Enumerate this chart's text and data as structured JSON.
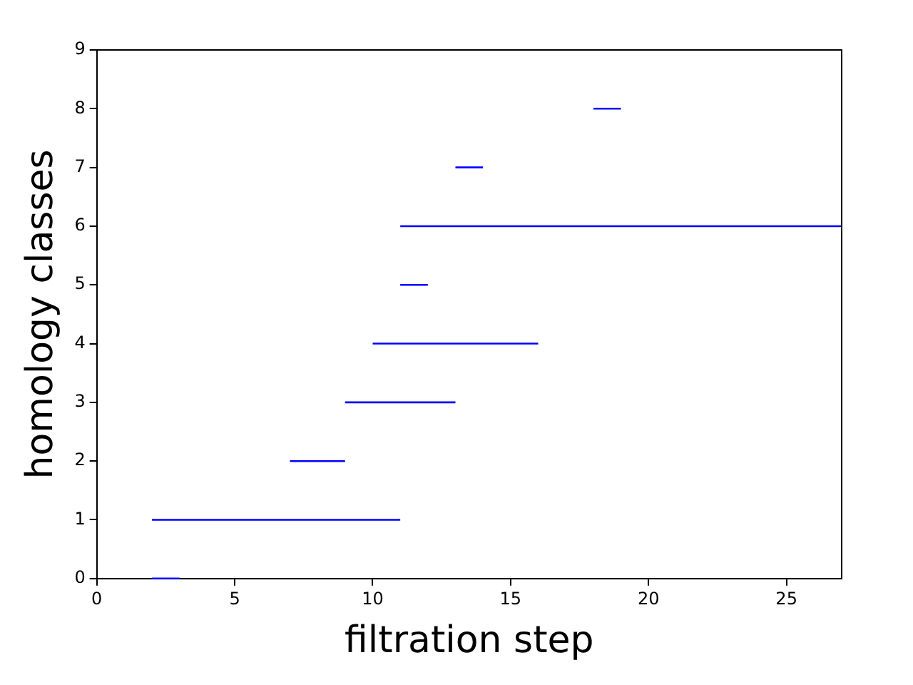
{
  "chart_data": {
    "type": "line",
    "xlabel": "filtration step",
    "ylabel": "homology classes",
    "xlim": [
      0,
      27
    ],
    "xticks": [
      0,
      5,
      10,
      15,
      20,
      25
    ],
    "ylim": [
      0,
      9
    ],
    "yticks": [
      0,
      1,
      2,
      3,
      4,
      5,
      6,
      7,
      8,
      9
    ],
    "grid": false,
    "legend": false,
    "marker": "none",
    "line_style": "solid",
    "series": [
      {
        "color": "#0000ff",
        "x": [
          2,
          3
        ],
        "values": [
          0,
          0
        ]
      },
      {
        "color": "#0000ff",
        "x": [
          2,
          11
        ],
        "values": [
          1,
          1
        ]
      },
      {
        "color": "#0000ff",
        "x": [
          7,
          9
        ],
        "values": [
          2,
          2
        ]
      },
      {
        "color": "#0000ff",
        "x": [
          9,
          13
        ],
        "values": [
          3,
          3
        ]
      },
      {
        "color": "#0000ff",
        "x": [
          10,
          16
        ],
        "values": [
          4,
          4
        ]
      },
      {
        "color": "#0000ff",
        "x": [
          11,
          12
        ],
        "values": [
          5,
          5
        ]
      },
      {
        "color": "#0000ff",
        "x": [
          11,
          27
        ],
        "values": [
          6,
          6
        ]
      },
      {
        "color": "#0000ff",
        "x": [
          13,
          14
        ],
        "values": [
          7,
          7
        ]
      },
      {
        "color": "#0000ff",
        "x": [
          18,
          19
        ],
        "values": [
          8,
          8
        ]
      }
    ]
  }
}
